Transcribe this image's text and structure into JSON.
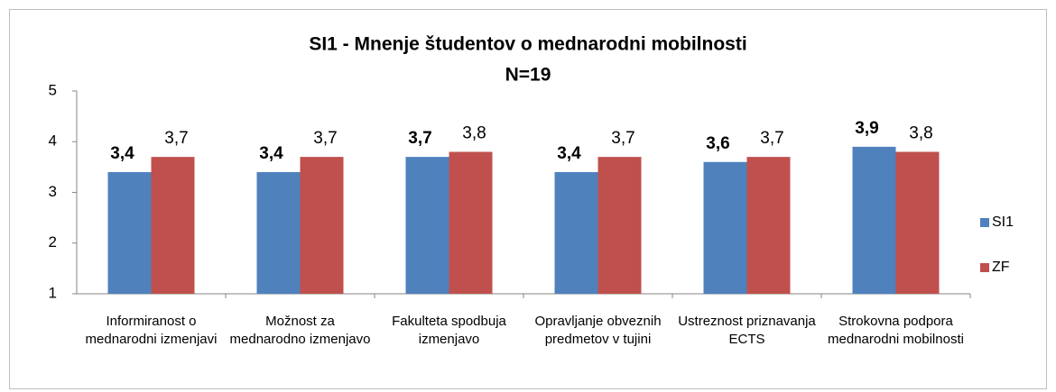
{
  "chart_data": {
    "type": "bar",
    "title": "SI1 - Mnenje študentov o mednarodni mobilnosti",
    "subtitle": "N=19",
    "categories": [
      "Informiranost o mednarodni izmenjavi",
      "Možnost za mednarodno izmenjavo",
      "Fakulteta spodbuja izmenjavo",
      "Opravljanje obveznih predmetov v tujini",
      "Ustreznost priznavanja ECTS",
      "Strokovna podpora mednarodni mobilnosti"
    ],
    "series": [
      {
        "name": "SI1",
        "color": "#4f81bd",
        "values": [
          3.4,
          3.4,
          3.7,
          3.4,
          3.6,
          3.9
        ],
        "value_labels": [
          "3,4",
          "3,4",
          "3,7",
          "3,4",
          "3,6",
          "3,9"
        ]
      },
      {
        "name": "ZF",
        "color": "#c0504d",
        "values": [
          3.7,
          3.7,
          3.8,
          3.7,
          3.7,
          3.8
        ],
        "value_labels": [
          "3,7",
          "3,7",
          "3,8",
          "3,7",
          "3,7",
          "3,8"
        ]
      }
    ],
    "ylim": [
      1,
      5
    ],
    "yticks": [
      1,
      2,
      3,
      4,
      5
    ],
    "grid": false,
    "legend": "right"
  }
}
